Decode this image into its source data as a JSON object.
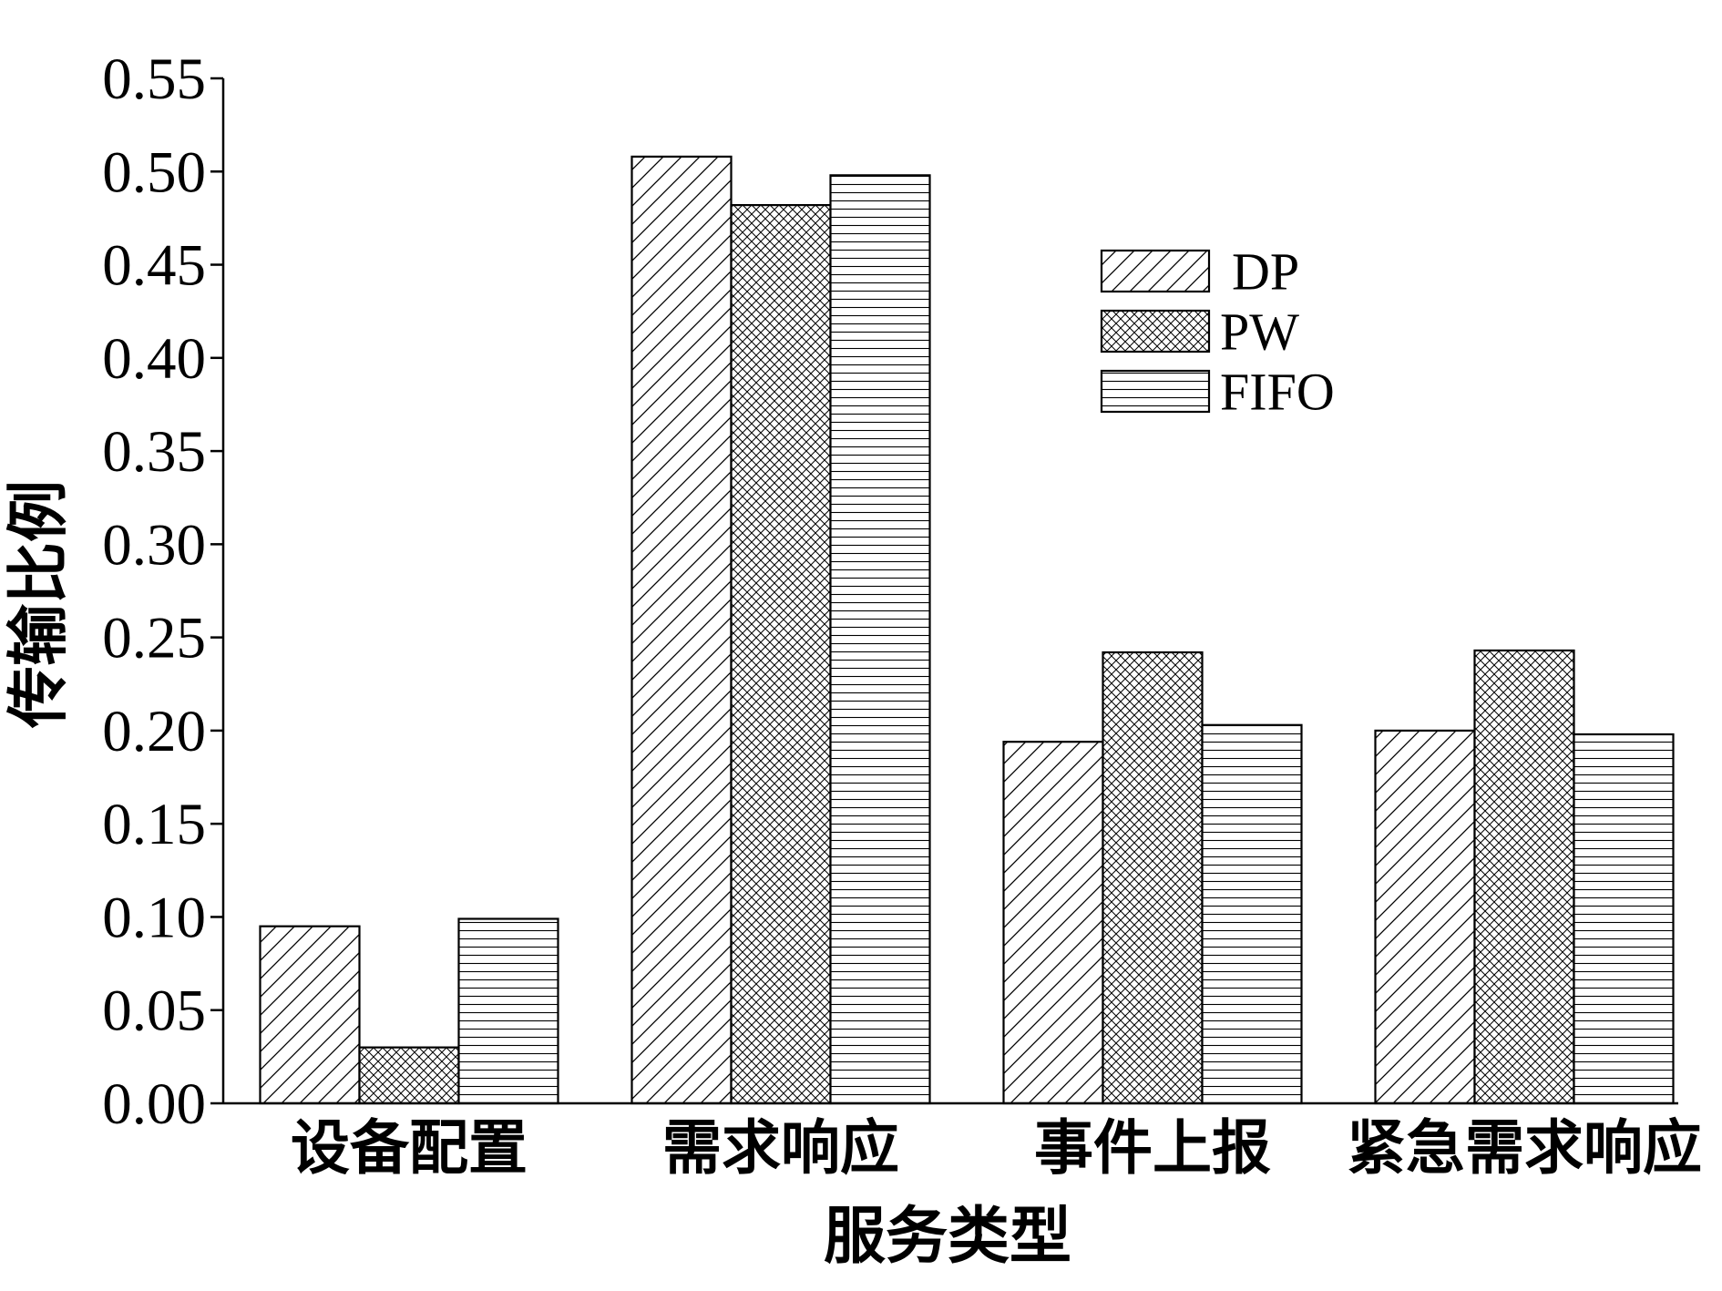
{
  "chart_data": {
    "type": "bar",
    "title": "",
    "categories": [
      "设备配置",
      "需求响应",
      "事件上报",
      "紧急需求响应"
    ],
    "series": [
      {
        "name": "DP",
        "values": [
          0.095,
          0.508,
          0.194,
          0.2
        ]
      },
      {
        "name": "PW",
        "values": [
          0.03,
          0.482,
          0.242,
          0.243
        ]
      },
      {
        "name": "FIFO",
        "values": [
          0.099,
          0.498,
          0.203,
          0.198
        ]
      }
    ],
    "xlabel": "服务类型",
    "ylabel": "传输比例",
    "ylim": [
      0,
      0.55
    ],
    "yticks": [
      "0.00",
      "0.05",
      "0.10",
      "0.15",
      "0.20",
      "0.25",
      "0.30",
      "0.35",
      "0.40",
      "0.45",
      "0.50",
      "0.55"
    ],
    "grid": false,
    "legend_position": "top-right",
    "colors": {
      "bar_fill": "#ffffff",
      "stroke": "#000000"
    }
  }
}
